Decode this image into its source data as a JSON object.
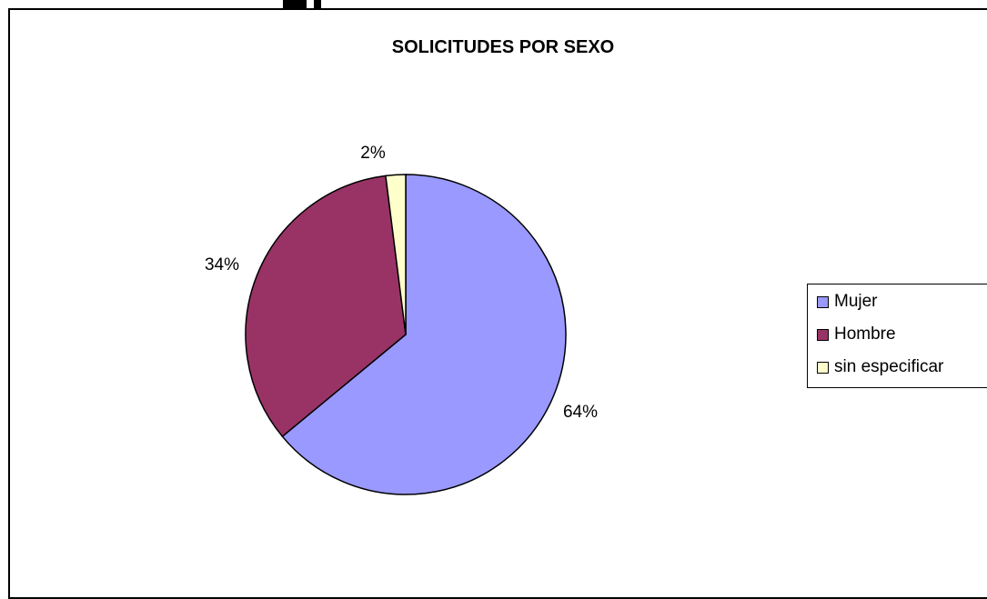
{
  "chart_data": {
    "type": "pie",
    "title": "SOLICITUDES POR SEXO",
    "categories": [
      "Mujer",
      "Hombre",
      "sin especificar"
    ],
    "values": [
      64,
      34,
      2
    ],
    "labels": [
      "64%",
      "34%",
      "2%"
    ],
    "colors": [
      "#9999FF",
      "#993366",
      "#FFFFCC"
    ],
    "legend_position": "right"
  }
}
